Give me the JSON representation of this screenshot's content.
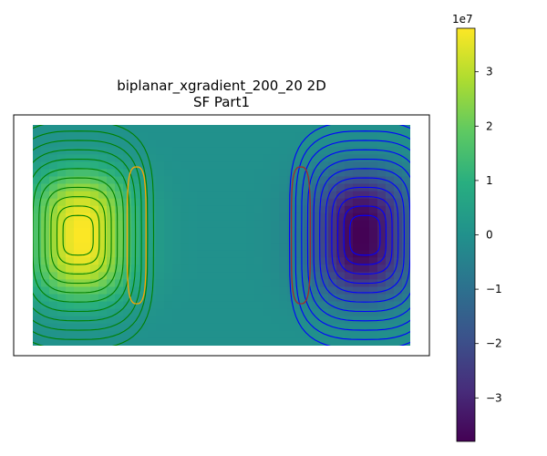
{
  "chart_data": {
    "type": "heatmap",
    "title_line1": "biplanar_xgradient_200_20 2D",
    "title_line2": "SF Part1",
    "xlabel": "",
    "ylabel": "",
    "axes_ticks": "none",
    "colormap": "viridis",
    "colorbar": {
      "multiplier": "1e7",
      "range": [
        -3.8,
        3.8
      ],
      "ticks": [
        3,
        2,
        1,
        0,
        -1,
        -2,
        -3
      ],
      "tick_labels": [
        "3",
        "2",
        "1",
        "0",
        "−1",
        "−2",
        "−3"
      ],
      "placement": "right"
    },
    "field": {
      "x_range": [
        -1,
        1
      ],
      "y_range": [
        -1,
        1
      ],
      "peak_positive": 3.8,
      "peak_negative": -3.8,
      "positive_side": "left",
      "negative_side": "right"
    },
    "contours": {
      "positive_color": "#008000",
      "negative_color": "#0000ff",
      "near_zero_positive_color": "#ffa500",
      "near_zero_negative_color": "#a52a2a",
      "levels_each_side": 11
    }
  }
}
